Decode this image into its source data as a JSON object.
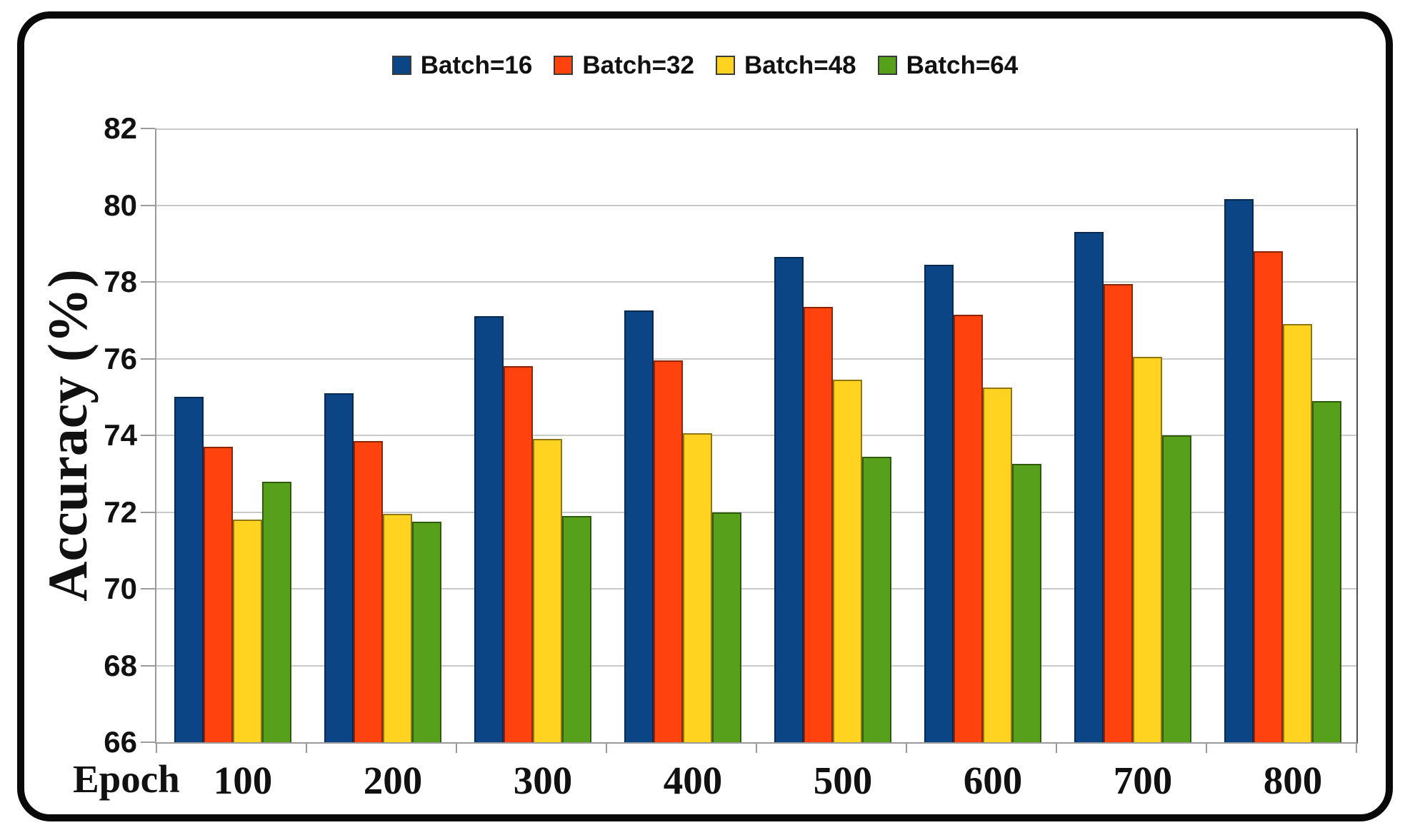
{
  "chart_data": {
    "type": "bar",
    "title": "",
    "ylabel": "Accuracy (%)",
    "xlabel": "Epoch",
    "ylim": [
      66,
      82
    ],
    "ytick_step": 2,
    "yticks": [
      "82",
      "80",
      "78",
      "76",
      "74",
      "72",
      "70",
      "68",
      "66"
    ],
    "categories": [
      "100",
      "200",
      "300",
      "400",
      "500",
      "600",
      "700",
      "800"
    ],
    "series": [
      {
        "name": "Batch=16",
        "color": "#0B4586",
        "border": "#05294f",
        "values": [
          75.0,
          75.1,
          77.1,
          77.25,
          78.65,
          78.45,
          79.3,
          80.15
        ]
      },
      {
        "name": "Batch=32",
        "color": "#FF420E",
        "border": "#8c2405",
        "values": [
          73.7,
          73.85,
          75.8,
          75.95,
          77.35,
          77.15,
          77.95,
          78.8
        ]
      },
      {
        "name": "Batch=48",
        "color": "#FFD320",
        "border": "#8f7611",
        "values": [
          71.8,
          71.95,
          73.9,
          74.05,
          75.45,
          75.25,
          76.05,
          76.9
        ]
      },
      {
        "name": "Batch=64",
        "color": "#57A01C",
        "border": "#2f5c0c",
        "values": [
          72.8,
          71.75,
          71.9,
          72.0,
          73.45,
          73.25,
          74.0,
          74.9
        ]
      }
    ],
    "grid": true,
    "legend_position": "top",
    "colors": {
      "gridline": "#c9c9c9",
      "axis": "#9a9a9a",
      "frame_border": "#090909",
      "text": "#111111"
    }
  }
}
